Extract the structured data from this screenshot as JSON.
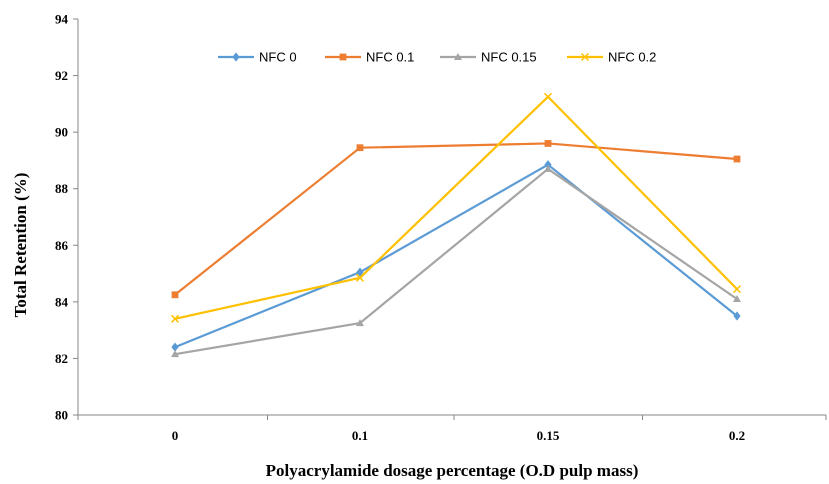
{
  "chart_data": {
    "type": "line",
    "title": "",
    "xlabel": "Polyacrylamide  dosage percentage (O.D pulp mass)",
    "ylabel": "Total  Retention (%)",
    "categories": [
      "0",
      "0.1",
      "0.15",
      "0.2"
    ],
    "ylim": [
      80,
      94
    ],
    "yticks": [
      80,
      82,
      84,
      86,
      88,
      90,
      92,
      94
    ],
    "grid": false,
    "legend_position": "top",
    "series": [
      {
        "name": "NFC 0",
        "color": "#5B9BD5",
        "marker": "diamond",
        "values": [
          82.4,
          85.05,
          88.85,
          83.5
        ]
      },
      {
        "name": "NFC 0.1",
        "color": "#ED7D31",
        "marker": "square",
        "values": [
          84.25,
          89.45,
          89.6,
          89.05
        ]
      },
      {
        "name": "NFC 0.15",
        "color": "#A5A5A5",
        "marker": "triangle",
        "values": [
          82.15,
          83.25,
          88.7,
          84.1
        ]
      },
      {
        "name": "NFC 0.2",
        "color": "#FFC000",
        "marker": "x",
        "values": [
          83.4,
          84.85,
          91.25,
          84.45
        ]
      }
    ]
  }
}
